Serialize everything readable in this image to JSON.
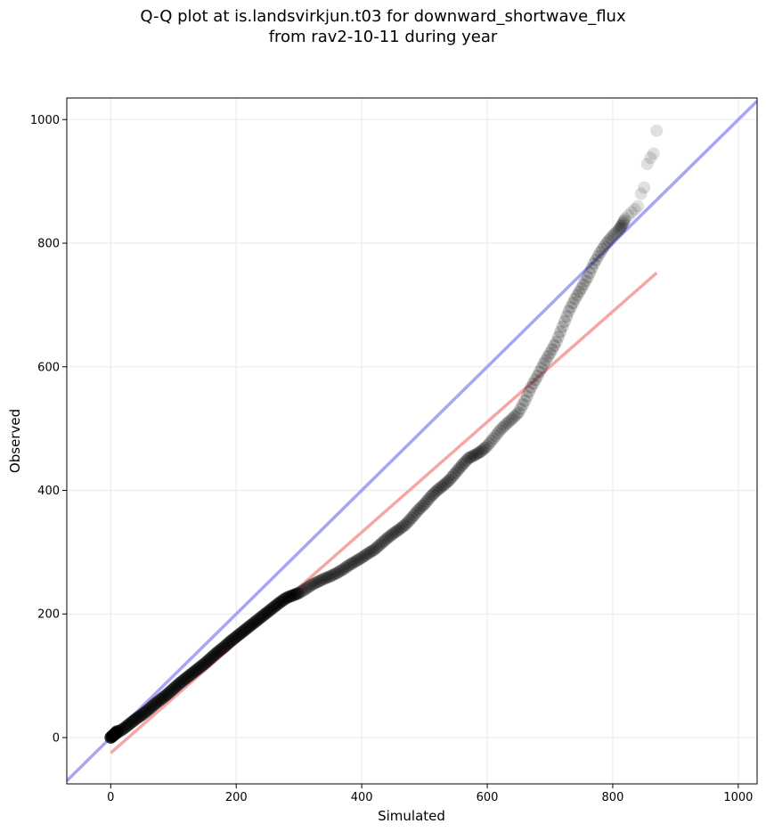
{
  "chart_data": {
    "type": "scatter",
    "title": "Q-Q plot at is.landsvirkjun.t03 for downward_shortwave_flux",
    "subtitle": "from rav2-10-11 during year",
    "xlabel": "Simulated",
    "ylabel": "Observed",
    "xlim": [
      -70,
      1030
    ],
    "ylim": [
      -75,
      1035
    ],
    "x_ticks": [
      0,
      200,
      400,
      600,
      800,
      1000
    ],
    "y_ticks": [
      0,
      200,
      400,
      600,
      800,
      1000
    ],
    "x_tick_labels": [
      "0",
      "200",
      "400",
      "600",
      "800",
      "1000"
    ],
    "y_tick_labels": [
      "0",
      "200",
      "400",
      "600",
      "800",
      "1000"
    ],
    "grid": true,
    "quantile_points": [
      [
        0,
        0
      ],
      [
        5,
        4
      ],
      [
        10,
        8
      ],
      [
        20,
        14
      ],
      [
        30,
        22
      ],
      [
        40,
        30
      ],
      [
        50,
        37
      ],
      [
        60,
        45
      ],
      [
        70,
        54
      ],
      [
        80,
        62
      ],
      [
        90,
        70
      ],
      [
        100,
        79
      ],
      [
        110,
        88
      ],
      [
        120,
        96
      ],
      [
        130,
        104
      ],
      [
        140,
        112
      ],
      [
        150,
        120
      ],
      [
        160,
        129
      ],
      [
        170,
        138
      ],
      [
        180,
        146
      ],
      [
        190,
        155
      ],
      [
        200,
        163
      ],
      [
        210,
        171
      ],
      [
        220,
        179
      ],
      [
        230,
        187
      ],
      [
        240,
        195
      ],
      [
        250,
        203
      ],
      [
        260,
        211
      ],
      [
        270,
        219
      ],
      [
        280,
        226
      ],
      [
        290,
        230
      ],
      [
        300,
        234
      ],
      [
        310,
        240
      ],
      [
        320,
        247
      ],
      [
        330,
        252
      ],
      [
        340,
        257
      ],
      [
        350,
        261
      ],
      [
        360,
        266
      ],
      [
        370,
        272
      ],
      [
        380,
        279
      ],
      [
        390,
        285
      ],
      [
        400,
        291
      ],
      [
        410,
        298
      ],
      [
        420,
        304
      ],
      [
        430,
        313
      ],
      [
        440,
        322
      ],
      [
        450,
        330
      ],
      [
        460,
        337
      ],
      [
        470,
        345
      ],
      [
        480,
        356
      ],
      [
        490,
        368
      ],
      [
        500,
        378
      ],
      [
        510,
        390
      ],
      [
        520,
        400
      ],
      [
        530,
        408
      ],
      [
        540,
        417
      ],
      [
        550,
        429
      ],
      [
        560,
        441
      ],
      [
        570,
        452
      ],
      [
        580,
        457
      ],
      [
        590,
        463
      ],
      [
        600,
        472
      ],
      [
        610,
        484
      ],
      [
        620,
        497
      ],
      [
        630,
        507
      ],
      [
        640,
        516
      ],
      [
        650,
        526
      ],
      [
        660,
        545
      ],
      [
        670,
        567
      ],
      [
        680,
        585
      ],
      [
        690,
        605
      ],
      [
        700,
        622
      ],
      [
        710,
        640
      ],
      [
        720,
        665
      ],
      [
        730,
        690
      ],
      [
        740,
        710
      ],
      [
        750,
        727
      ],
      [
        760,
        745
      ],
      [
        770,
        767
      ],
      [
        780,
        785
      ],
      [
        790,
        800
      ],
      [
        800,
        812
      ],
      [
        810,
        822
      ],
      [
        815,
        830
      ],
      [
        820,
        840
      ],
      [
        825,
        845
      ],
      [
        830,
        850
      ],
      [
        835,
        855
      ],
      [
        840,
        860
      ],
      [
        845,
        880
      ],
      [
        850,
        890
      ],
      [
        855,
        928
      ],
      [
        860,
        938
      ],
      [
        865,
        945
      ],
      [
        870,
        982
      ]
    ],
    "reference_lines": [
      {
        "kind": "identity",
        "color": "#a6a6f5",
        "x": [
          -70,
          1030
        ],
        "y": [
          -70,
          1030
        ]
      },
      {
        "kind": "fit",
        "color": "#f5a6a6",
        "x": [
          0,
          870
        ],
        "y": [
          -25,
          752
        ]
      }
    ],
    "point_color": "#000000"
  }
}
